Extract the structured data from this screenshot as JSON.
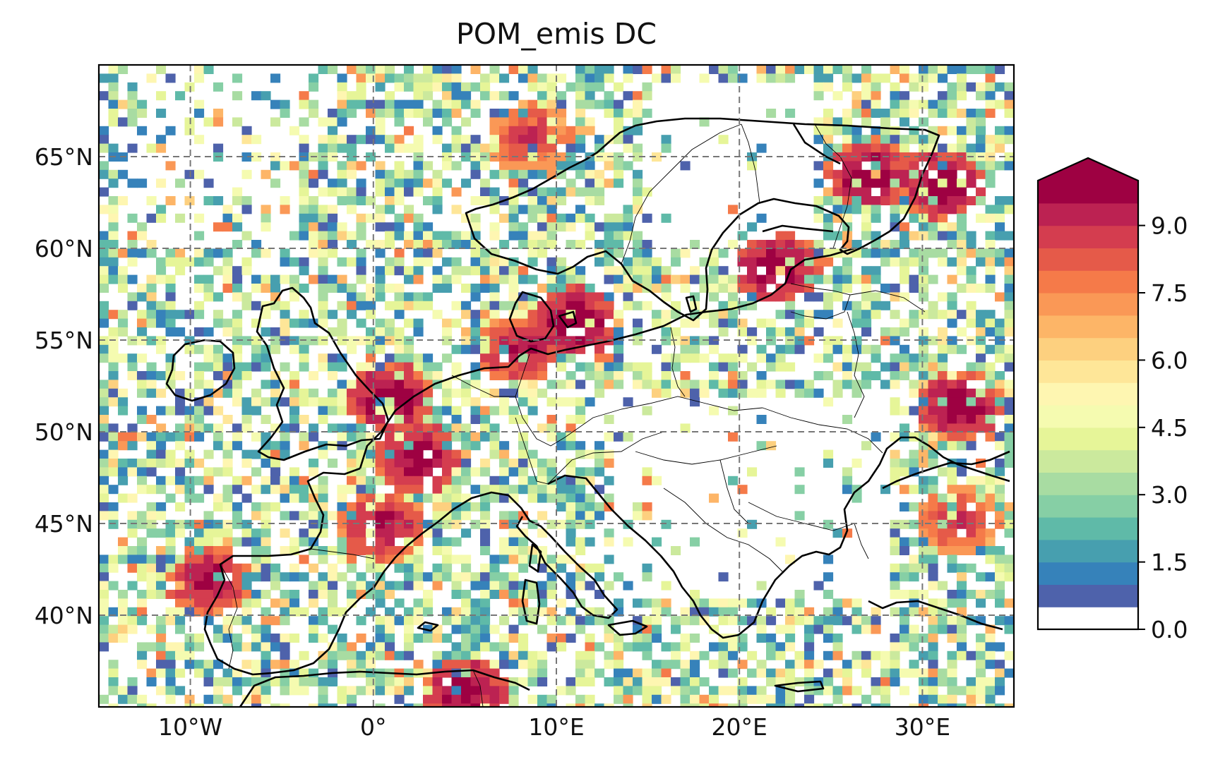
{
  "map": {
    "title": "POM_emis DC",
    "extent": {
      "lon_min": -15,
      "lon_max": 35,
      "lat_min": 35,
      "lat_max": 70
    },
    "gridlines": {
      "lon": [
        -10,
        0,
        10,
        20,
        30
      ],
      "lat": [
        40,
        45,
        50,
        55,
        60,
        65
      ],
      "style": "dashed",
      "color": "#777777"
    },
    "lon_labels": [
      "10°W",
      "0°",
      "10°E",
      "20°E",
      "30°E"
    ],
    "lat_labels": [
      "40°N",
      "45°N",
      "50°N",
      "55°N",
      "60°N",
      "65°N"
    ],
    "coastline_color": "#000000",
    "border_color": "#000000"
  },
  "colorbar": {
    "ticks": [
      "0.0",
      "1.5",
      "3.0",
      "4.5",
      "6.0",
      "7.5",
      "9.0"
    ],
    "vmin": 0,
    "vmax": 10,
    "levels": 20,
    "extend": "max",
    "under_color": "#ffffff",
    "colors": [
      "#ffffff",
      "#4e62ab",
      "#3682ba",
      "#479faf",
      "#5fbaa8",
      "#86cfa5",
      "#a8dca2",
      "#cbe99d",
      "#e6f598",
      "#f5fbb0",
      "#fef6b1",
      "#fee698",
      "#fdd07f",
      "#fdb567",
      "#fa9856",
      "#f57a49",
      "#e55a49",
      "#d43d4f",
      "#bc2252",
      "#9e0142"
    ],
    "over_color": "#9e0142"
  },
  "chart_data": {
    "type": "heatmap",
    "title": "POM_emis DC",
    "xlabel": "",
    "ylabel": "",
    "x_ticks": [
      "10°W",
      "0°",
      "10°E",
      "20°E",
      "30°E"
    ],
    "y_ticks": [
      "40°N",
      "45°N",
      "50°N",
      "55°N",
      "60°N",
      "65°N"
    ],
    "xlim": [
      -15,
      35
    ],
    "ylim": [
      35,
      70
    ],
    "value_range": [
      0,
      10
    ],
    "colorbar_ticks": [
      0.0,
      1.5,
      3.0,
      4.5,
      6.0,
      7.5,
      9.0
    ],
    "hotspots": [
      {
        "lon": 27,
        "lat": 64,
        "value": 10
      },
      {
        "lon": 31,
        "lat": 63.5,
        "value": 10
      },
      {
        "lon": 22,
        "lat": 59,
        "value": 10
      },
      {
        "lon": 11,
        "lat": 56,
        "value": 10
      },
      {
        "lon": 8,
        "lat": 54.5,
        "value": 9.5
      },
      {
        "lon": 1,
        "lat": 51.8,
        "value": 10
      },
      {
        "lon": 32,
        "lat": 51.5,
        "value": 10
      },
      {
        "lon": 2.5,
        "lat": 48.5,
        "value": 10
      },
      {
        "lon": 0.5,
        "lat": 44.8,
        "value": 9.5
      },
      {
        "lon": -9,
        "lat": 42,
        "value": 9.5
      },
      {
        "lon": 5,
        "lat": 35.8,
        "value": 10
      },
      {
        "lon": 8.5,
        "lat": 66,
        "value": 9
      },
      {
        "lon": 32,
        "lat": 45.2,
        "value": 9
      }
    ]
  }
}
